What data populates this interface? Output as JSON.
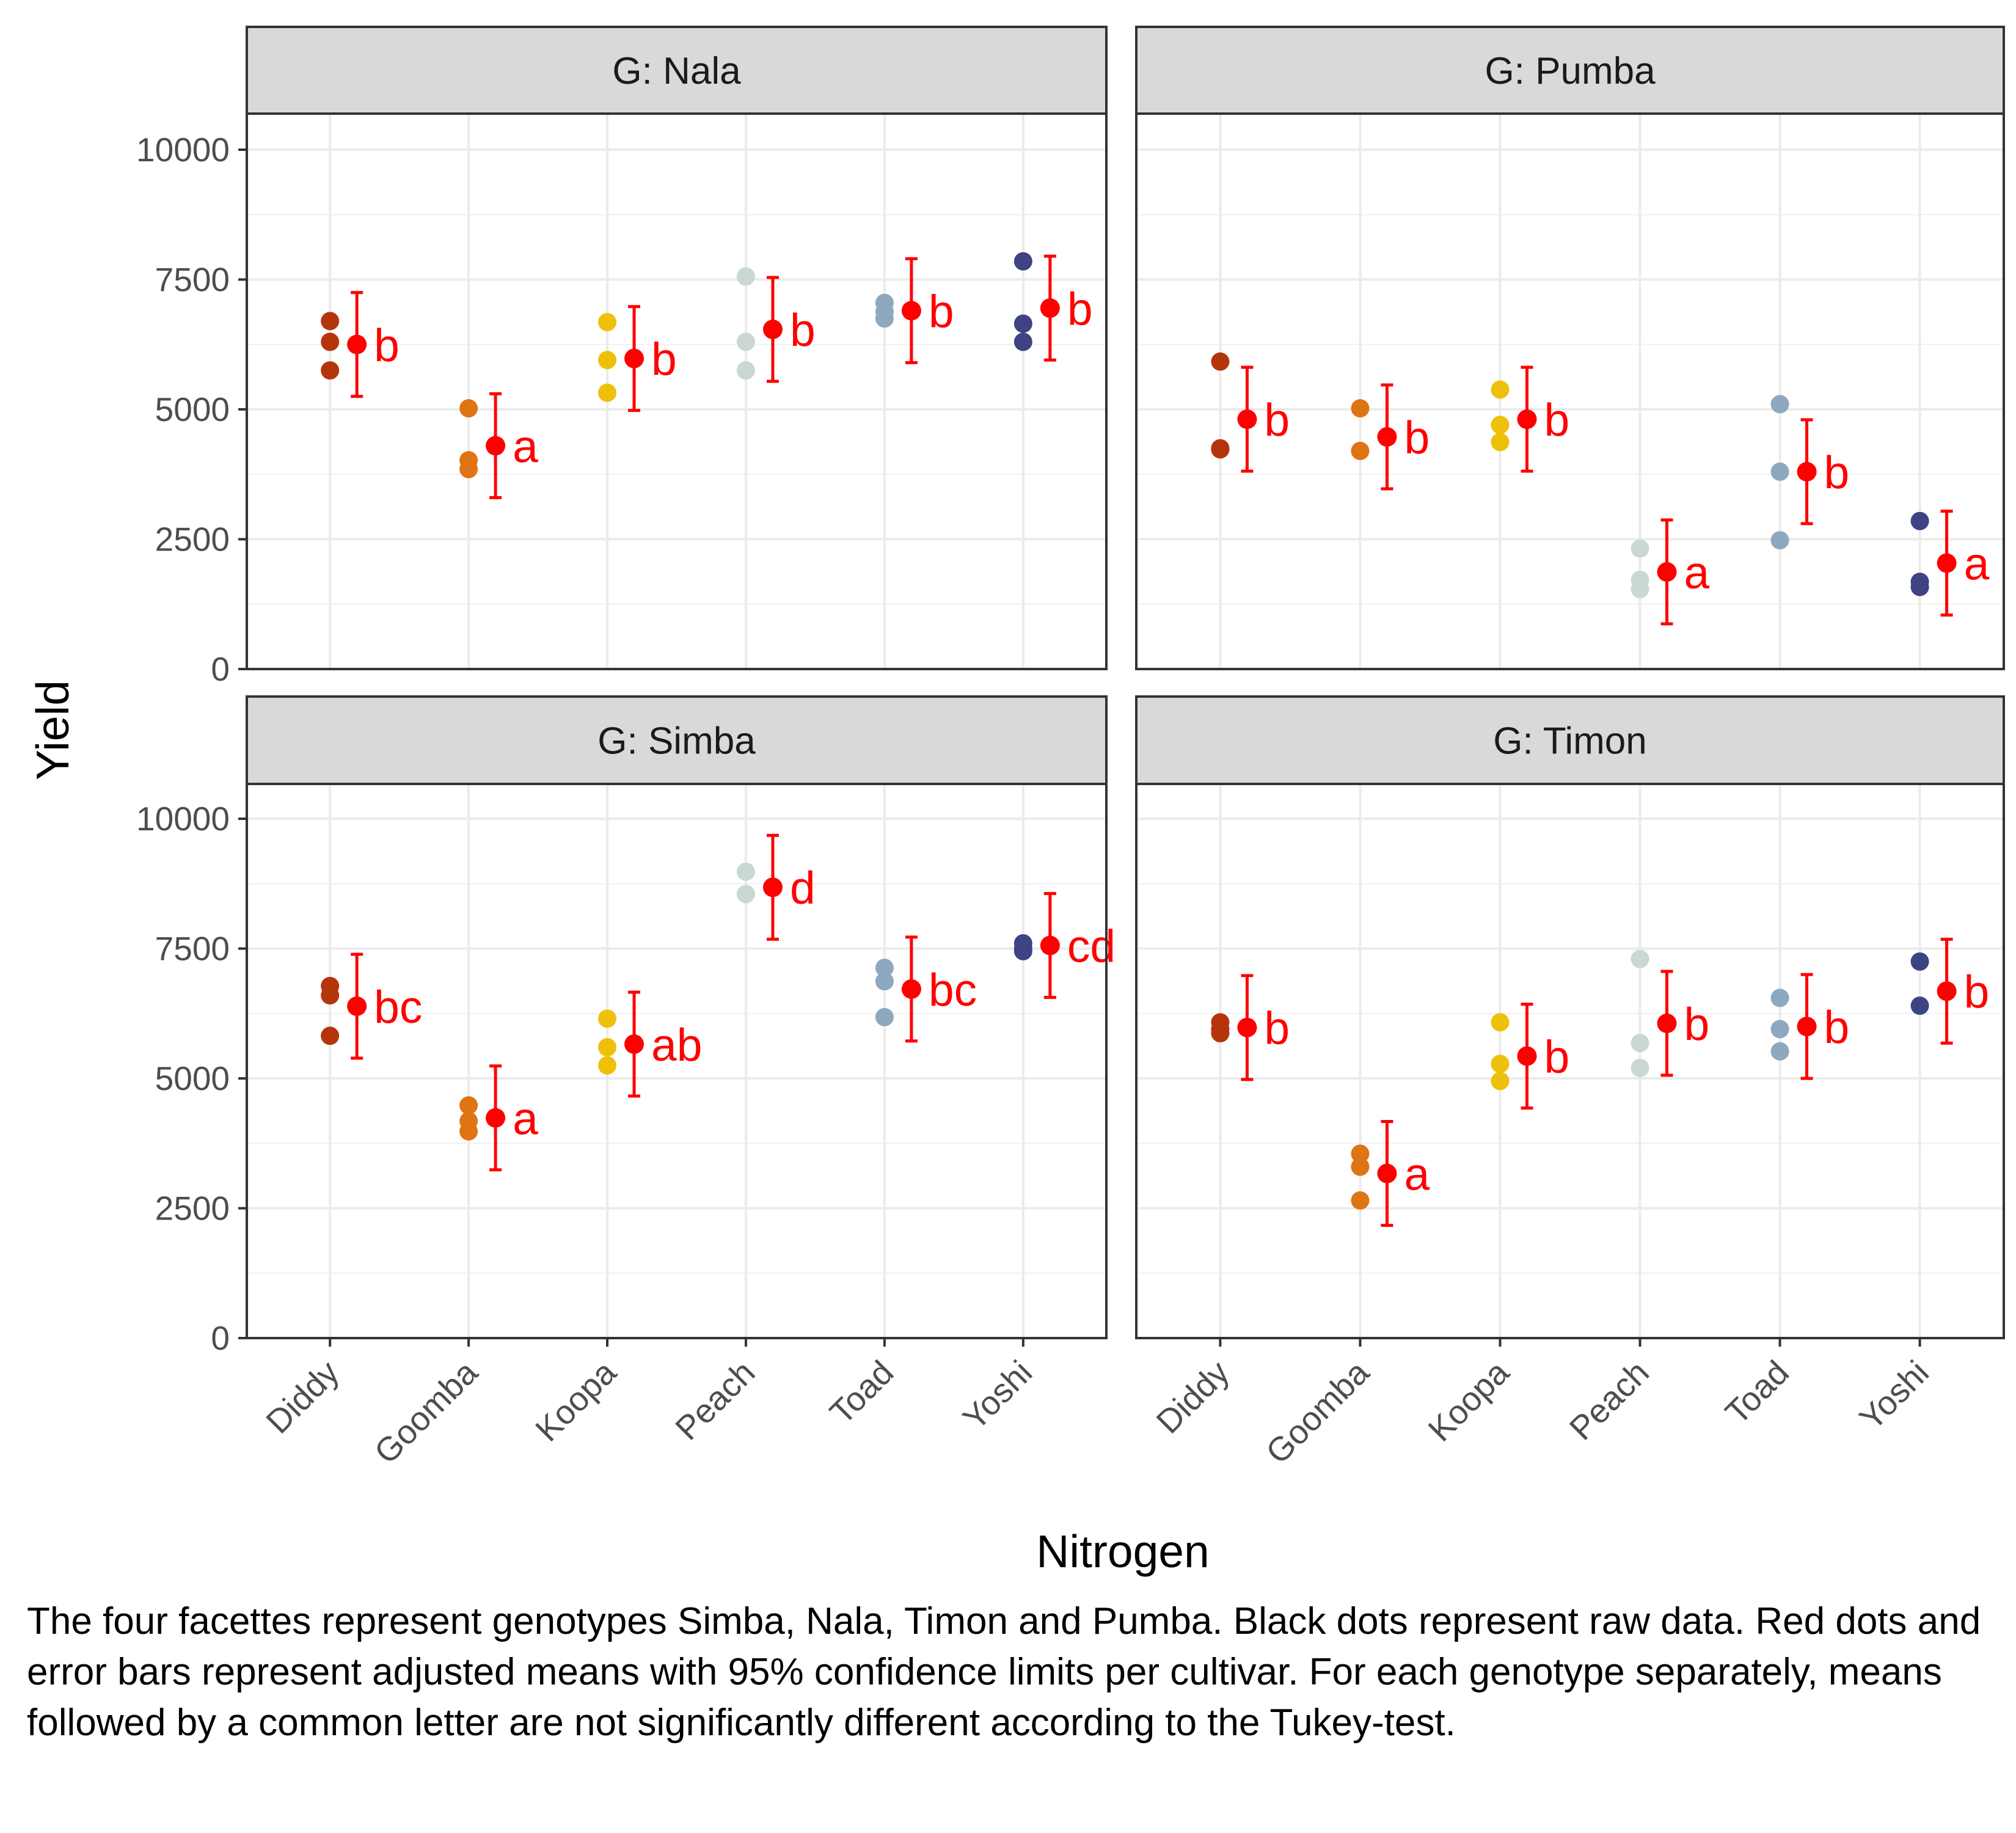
{
  "chart_data": {
    "type": "scatter",
    "x_title": "Nitrogen",
    "y_title": "Yield",
    "y_ticks": [
      0,
      2500,
      5000,
      7500,
      10000
    ],
    "ylim": [
      0,
      10000
    ],
    "categories": [
      "Diddy",
      "Goomba",
      "Koopa",
      "Peach",
      "Toad",
      "Yoshi"
    ],
    "category_colors": {
      "Diddy": "#b5350b",
      "Goomba": "#df7414",
      "Koopa": "#efc00a",
      "Peach": "#c9d8d1",
      "Toad": "#8ea8bf",
      "Yoshi": "#3d4383"
    },
    "mean_color": "#ff0000",
    "facets": [
      {
        "label": "G: Nala",
        "groups": [
          {
            "category": "Diddy",
            "raw": [
              6700,
              6300,
              5750
            ],
            "mean": 6250,
            "lower": 5250,
            "upper": 7250,
            "letter": "b"
          },
          {
            "category": "Goomba",
            "raw": [
              5020,
              4020,
              3850
            ],
            "mean": 4300,
            "lower": 3300,
            "upper": 5300,
            "letter": "a"
          },
          {
            "category": "Koopa",
            "raw": [
              6680,
              5950,
              5320
            ],
            "mean": 5980,
            "lower": 4980,
            "upper": 6980,
            "letter": "b"
          },
          {
            "category": "Peach",
            "raw": [
              7560,
              6300,
              5750
            ],
            "mean": 6540,
            "lower": 5540,
            "upper": 7540,
            "letter": "b"
          },
          {
            "category": "Toad",
            "raw": [
              7050,
              6880,
              6750
            ],
            "mean": 6900,
            "lower": 5900,
            "upper": 7900,
            "letter": "b"
          },
          {
            "category": "Yoshi",
            "raw": [
              7850,
              6650,
              6300
            ],
            "mean": 6950,
            "lower": 5950,
            "upper": 7950,
            "letter": "b"
          }
        ]
      },
      {
        "label": "G: Pumba",
        "groups": [
          {
            "category": "Diddy",
            "raw": [
              5920,
              4250,
              4230
            ],
            "mean": 4810,
            "lower": 3810,
            "upper": 5810,
            "letter": "b"
          },
          {
            "category": "Goomba",
            "raw": [
              5020,
              4200
            ],
            "mean": 4470,
            "lower": 3470,
            "upper": 5470,
            "letter": "b"
          },
          {
            "category": "Koopa",
            "raw": [
              5380,
              4700,
              4370
            ],
            "mean": 4810,
            "lower": 3810,
            "upper": 5810,
            "letter": "b"
          },
          {
            "category": "Peach",
            "raw": [
              2320,
              1720,
              1540
            ],
            "mean": 1870,
            "lower": 870,
            "upper": 2870,
            "letter": "a"
          },
          {
            "category": "Toad",
            "raw": [
              5100,
              3800,
              2480
            ],
            "mean": 3800,
            "lower": 2800,
            "upper": 4800,
            "letter": "b"
          },
          {
            "category": "Yoshi",
            "raw": [
              2850,
              1680,
              1580
            ],
            "mean": 2040,
            "lower": 1040,
            "upper": 3040,
            "letter": "a"
          }
        ]
      },
      {
        "label": "G: Simba",
        "groups": [
          {
            "category": "Diddy",
            "raw": [
              6780,
              6600,
              5820
            ],
            "mean": 6390,
            "lower": 5390,
            "upper": 7390,
            "letter": "bc"
          },
          {
            "category": "Goomba",
            "raw": [
              4480,
              4180,
              3980
            ],
            "mean": 4240,
            "lower": 3240,
            "upper": 5240,
            "letter": "a"
          },
          {
            "category": "Koopa",
            "raw": [
              6150,
              5600,
              5250
            ],
            "mean": 5660,
            "lower": 4660,
            "upper": 6660,
            "letter": "ab"
          },
          {
            "category": "Peach",
            "raw": [
              8980,
              8550
            ],
            "mean": 8680,
            "lower": 7680,
            "upper": 9680,
            "letter": "d"
          },
          {
            "category": "Toad",
            "raw": [
              7130,
              6870,
              6180
            ],
            "mean": 6720,
            "lower": 5720,
            "upper": 7720,
            "letter": "bc"
          },
          {
            "category": "Yoshi",
            "raw": [
              7600,
              7500,
              7450
            ],
            "mean": 7560,
            "lower": 6560,
            "upper": 8560,
            "letter": "cd"
          }
        ]
      },
      {
        "label": "G: Timon",
        "groups": [
          {
            "category": "Diddy",
            "raw": [
              6080,
              5950,
              5870
            ],
            "mean": 5980,
            "lower": 4980,
            "upper": 6980,
            "letter": "b"
          },
          {
            "category": "Goomba",
            "raw": [
              3550,
              3300,
              2650
            ],
            "mean": 3170,
            "lower": 2170,
            "upper": 4170,
            "letter": "a"
          },
          {
            "category": "Koopa",
            "raw": [
              6080,
              5280,
              4950
            ],
            "mean": 5430,
            "lower": 4430,
            "upper": 6430,
            "letter": "b"
          },
          {
            "category": "Peach",
            "raw": [
              7300,
              5680,
              5200
            ],
            "mean": 6060,
            "lower": 5060,
            "upper": 7060,
            "letter": "b"
          },
          {
            "category": "Toad",
            "raw": [
              6550,
              5950,
              5520
            ],
            "mean": 6000,
            "lower": 5000,
            "upper": 7000,
            "letter": "b"
          },
          {
            "category": "Yoshi",
            "raw": [
              7250,
              6400
            ],
            "mean": 6680,
            "lower": 5680,
            "upper": 7680,
            "letter": "b"
          }
        ]
      }
    ]
  },
  "caption": "The four facettes represent genotypes Simba, Nala, Timon and Pumba. Black dots represent raw data. Red dots and error bars represent adjusted means with 95% confidence limits per cultivar. For each genotype separately, means followed by a common letter are not significantly different according to the Tukey-test."
}
